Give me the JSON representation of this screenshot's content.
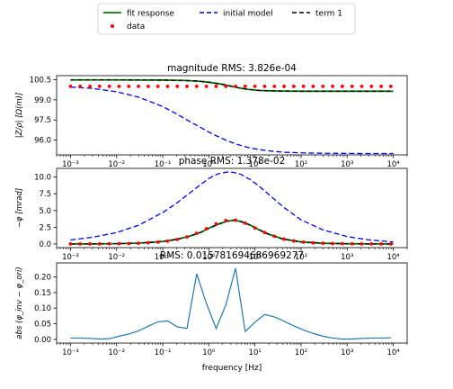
{
  "legend": {
    "entries": [
      {
        "label": "fit response",
        "color": "#008000",
        "style": "solid",
        "marker": "line"
      },
      {
        "label": "initial model",
        "color": "#0000ff",
        "style": "dashed",
        "marker": "line"
      },
      {
        "label": "term 1",
        "color": "#000000",
        "style": "dashed",
        "marker": "line"
      },
      {
        "label": "data",
        "color": "#ff0000",
        "style": "none",
        "marker": "dot"
      }
    ]
  },
  "xlabel": "frequency [Hz]",
  "chart_data": [
    {
      "type": "line",
      "title": "magnitude RMS: 3.826e-04",
      "xlabel": "",
      "ylabel": "|Z/ρ| [Ω(m)]",
      "xscale": "log",
      "xlim": [
        0.0005,
        20000
      ],
      "ylim": [
        94.9,
        100.8
      ],
      "xticks": [
        0.001,
        0.01,
        0.1,
        1,
        10,
        100,
        1000,
        10000
      ],
      "xtick_labels": [
        "10⁻³",
        "10⁻²",
        "10⁻¹",
        "10⁰",
        "10¹",
        "10²",
        "10³",
        "10⁴"
      ],
      "yticks": [
        96.0,
        97.5,
        99.0,
        100.5
      ],
      "ytick_labels": [
        "96.0",
        "97.5",
        "99.0",
        "100.5"
      ],
      "x": [
        0.001,
        0.00162,
        0.00264,
        0.00428,
        0.00695,
        0.01129,
        0.01833,
        0.02976,
        0.04833,
        0.07848,
        0.1274,
        0.2069,
        0.336,
        0.5456,
        0.886,
        1.438,
        2.336,
        3.793,
        6.158,
        10.0,
        16.24,
        26.37,
        42.81,
        69.52,
        112.9,
        183.3,
        297.6,
        483.3,
        784.8,
        1274,
        2069,
        3360,
        5456,
        8860,
        10000
      ],
      "series": [
        {
          "name": "data",
          "kind": "scatter",
          "color": "#ff0000",
          "x": [
            0.001,
            0.00162,
            0.00264,
            0.00428,
            0.00695,
            0.01129,
            0.01833,
            0.02976,
            0.04833,
            0.07848,
            0.1274,
            0.2069,
            0.336,
            0.5456,
            0.886,
            1.438,
            2.336,
            3.793,
            6.158,
            10.0,
            16.24,
            26.37,
            42.81,
            69.52,
            112.9,
            183.3,
            297.6,
            483.3,
            784.8,
            1274,
            2069,
            3360,
            5456,
            8860
          ],
          "values": [
            100.0,
            100.0,
            100.0,
            100.0,
            100.0,
            100.0,
            100.0,
            100.0,
            100.0,
            100.0,
            100.0,
            100.0,
            100.0,
            100.0,
            100.0,
            100.0,
            100.0,
            100.0,
            100.0,
            100.0,
            100.0,
            100.0,
            100.0,
            100.0,
            100.0,
            100.0,
            100.0,
            100.0,
            100.0,
            100.0,
            100.0,
            100.0,
            100.0,
            100.0
          ]
        },
        {
          "name": "fit response",
          "kind": "line",
          "color": "#008000",
          "dash": "",
          "x": [
            0.001,
            0.01,
            0.1,
            0.3,
            0.6,
            1,
            2,
            4,
            7,
            12,
            20,
            40,
            100,
            1000,
            10000
          ],
          "values": [
            100.48,
            100.48,
            100.47,
            100.44,
            100.39,
            100.31,
            100.15,
            99.92,
            99.78,
            99.7,
            99.67,
            99.65,
            99.64,
            99.64,
            99.64
          ]
        },
        {
          "name": "initial model",
          "kind": "line",
          "color": "#0000ff",
          "dash": "6,3",
          "x": [
            0.001,
            0.003,
            0.01,
            0.03,
            0.1,
            0.2,
            0.4,
            0.7,
            1,
            1.5,
            2.5,
            4,
            7,
            12,
            20,
            40,
            100,
            300,
            1000,
            3000,
            10000
          ],
          "values": [
            99.95,
            99.85,
            99.6,
            99.2,
            98.5,
            97.95,
            97.35,
            96.9,
            96.6,
            96.3,
            95.95,
            95.7,
            95.45,
            95.3,
            95.2,
            95.1,
            95.05,
            95.02,
            95.01,
            95.0,
            95.0
          ]
        },
        {
          "name": "term 1",
          "kind": "line",
          "color": "#000000",
          "dash": "5,3",
          "x": [
            0.001,
            0.01,
            0.1,
            0.3,
            0.6,
            1,
            2,
            4,
            7,
            12,
            20,
            40,
            100,
            1000,
            10000
          ],
          "values": [
            100.48,
            100.48,
            100.47,
            100.44,
            100.39,
            100.31,
            100.15,
            99.92,
            99.78,
            99.7,
            99.67,
            99.65,
            99.64,
            99.64,
            99.64
          ]
        }
      ]
    },
    {
      "type": "line",
      "title": "phase RMS: 1.378e-02",
      "xlabel": "",
      "ylabel": "−φ [mrad]",
      "xscale": "log",
      "xlim": [
        0.0005,
        20000
      ],
      "ylim": [
        -0.55,
        11.3
      ],
      "xticks": [
        0.001,
        0.01,
        0.1,
        1,
        10,
        100,
        1000,
        10000
      ],
      "xtick_labels": [
        "10⁻³",
        "10⁻²",
        "10⁻¹",
        "10⁰",
        "10¹",
        "10²",
        "10³",
        "10⁴"
      ],
      "yticks": [
        0.0,
        2.5,
        5.0,
        7.5,
        10.0
      ],
      "ytick_labels": [
        "0.0",
        "2.5",
        "5.0",
        "7.5",
        "10.0"
      ],
      "series": [
        {
          "name": "data",
          "kind": "scatter",
          "color": "#ff0000",
          "x": [
            0.001,
            0.00162,
            0.00264,
            0.00428,
            0.00695,
            0.01129,
            0.01833,
            0.02976,
            0.04833,
            0.07848,
            0.1274,
            0.2069,
            0.336,
            0.5456,
            0.886,
            1.438,
            2.336,
            3.793,
            6.158,
            10.0,
            16.24,
            26.37,
            42.81,
            69.52,
            112.9,
            183.3,
            297.6,
            483.3,
            784.8,
            1274,
            2069,
            3360,
            5456,
            8860
          ],
          "values": [
            0.0,
            0.0,
            0.01,
            0.01,
            0.02,
            0.04,
            0.06,
            0.1,
            0.17,
            0.27,
            0.43,
            0.68,
            1.05,
            1.58,
            2.27,
            2.99,
            3.5,
            3.55,
            3.1,
            2.4,
            1.7,
            1.15,
            0.72,
            0.45,
            0.27,
            0.16,
            0.1,
            0.06,
            0.04,
            0.02,
            0.01,
            0.01,
            0.0,
            0.0
          ]
        },
        {
          "name": "fit response",
          "kind": "line",
          "color": "#008000",
          "dash": "",
          "x": [
            0.001,
            0.003,
            0.01,
            0.03,
            0.1,
            0.2,
            0.4,
            0.7,
            1,
            1.6,
            2.5,
            3.5,
            5,
            8,
            12,
            20,
            40,
            100,
            300,
            1000,
            3000,
            10000
          ],
          "values": [
            0.0,
            0.01,
            0.04,
            0.12,
            0.37,
            0.68,
            1.2,
            1.8,
            2.35,
            2.95,
            3.4,
            3.55,
            3.35,
            2.8,
            2.15,
            1.45,
            0.75,
            0.3,
            0.1,
            0.03,
            0.01,
            0.0
          ]
        },
        {
          "name": "initial model",
          "kind": "line",
          "color": "#0000ff",
          "dash": "6,3",
          "x": [
            0.001,
            0.003,
            0.01,
            0.03,
            0.1,
            0.2,
            0.4,
            0.7,
            1,
            1.6,
            2.5,
            3.5,
            5,
            8,
            12,
            20,
            40,
            100,
            300,
            1000,
            3000,
            10000
          ],
          "values": [
            0.6,
            1.0,
            1.7,
            2.8,
            4.7,
            6.1,
            7.7,
            9.0,
            9.8,
            10.5,
            10.75,
            10.7,
            10.4,
            9.6,
            8.7,
            7.4,
            5.6,
            3.6,
            2.1,
            1.1,
            0.6,
            0.3
          ]
        },
        {
          "name": "term 1",
          "kind": "line",
          "color": "#000000",
          "dash": "5,3",
          "x": [
            0.001,
            0.003,
            0.01,
            0.03,
            0.1,
            0.2,
            0.4,
            0.7,
            1,
            1.6,
            2.5,
            3.5,
            5,
            8,
            12,
            20,
            40,
            100,
            300,
            1000,
            3000,
            10000
          ],
          "values": [
            0.0,
            0.01,
            0.04,
            0.12,
            0.37,
            0.68,
            1.2,
            1.8,
            2.35,
            2.95,
            3.4,
            3.55,
            3.35,
            2.8,
            2.15,
            1.45,
            0.75,
            0.3,
            0.1,
            0.03,
            0.01,
            0.0
          ]
        }
      ]
    },
    {
      "type": "line",
      "title": "RMS: 0.015781694686969277",
      "xlabel": "frequency [Hz]",
      "ylabel": "abs (φ_inv − φ_ori)",
      "xscale": "log",
      "xlim": [
        0.0005,
        20000
      ],
      "ylim": [
        -0.012,
        0.245
      ],
      "xticks": [
        0.001,
        0.01,
        0.1,
        1,
        10,
        100,
        1000,
        10000
      ],
      "xtick_labels": [
        "10⁻³",
        "10⁻²",
        "10⁻¹",
        "10⁰",
        "10¹",
        "10²",
        "10³",
        "10⁴"
      ],
      "yticks": [
        0.0,
        0.05,
        0.1,
        0.15,
        0.2
      ],
      "ytick_labels": [
        "0.00",
        "0.05",
        "0.10",
        "0.15",
        "0.20"
      ],
      "series": [
        {
          "name": "",
          "kind": "line",
          "color": "#1f77b4",
          "dash": "",
          "x": [
            0.001,
            0.00162,
            0.00264,
            0.00428,
            0.00695,
            0.01129,
            0.01833,
            0.02976,
            0.04833,
            0.07848,
            0.1274,
            0.2069,
            0.336,
            0.5456,
            0.886,
            1.438,
            2.336,
            3.793,
            6.158,
            10.0,
            16.24,
            26.37,
            42.81,
            69.52,
            112.9,
            183.3,
            297.6,
            483.3,
            784.8,
            1274,
            2069,
            3360,
            5456,
            8860
          ],
          "values": [
            0.004,
            0.004,
            0.003,
            0.001,
            0.002,
            0.01,
            0.017,
            0.027,
            0.042,
            0.056,
            0.059,
            0.04,
            0.035,
            0.21,
            0.115,
            0.035,
            0.11,
            0.228,
            0.025,
            0.055,
            0.08,
            0.072,
            0.058,
            0.043,
            0.03,
            0.019,
            0.01,
            0.004,
            0.001,
            0.001,
            0.003,
            0.004,
            0.004,
            0.005
          ]
        }
      ]
    }
  ]
}
